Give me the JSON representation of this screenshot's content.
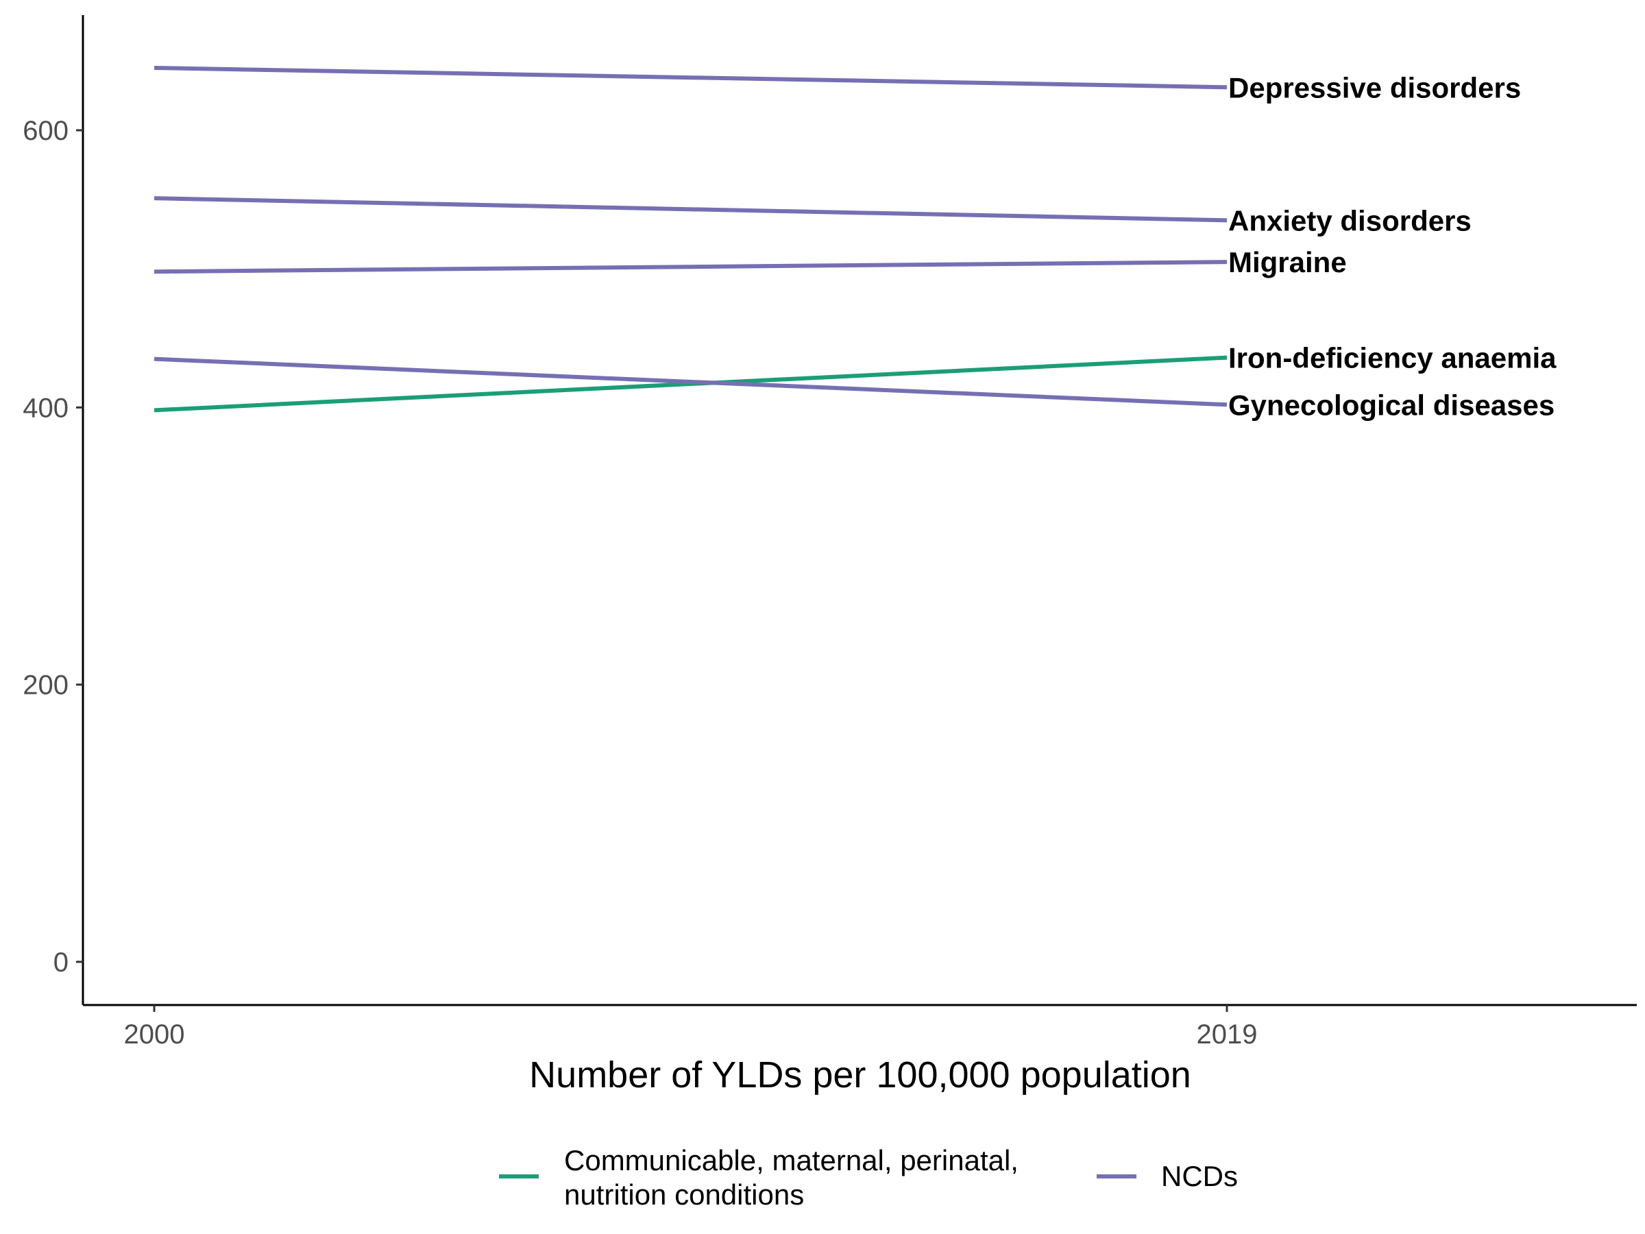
{
  "chart_data": {
    "type": "line",
    "title": "",
    "xlabel": "Number of YLDs per 100,000 population",
    "ylabel": "",
    "x": [
      "2000",
      "2019"
    ],
    "ylim": [
      -30,
      680
    ],
    "yticks": [
      "0",
      "200",
      "400",
      "600"
    ],
    "grid": false,
    "legend_position": "bottom",
    "legend": [
      {
        "label_lines": [
          "Communicable, maternal, perinatal,",
          "nutrition conditions"
        ],
        "color": "#1b9e77"
      },
      {
        "label_lines": [
          "NCDs"
        ],
        "color": "#7570b3"
      }
    ],
    "series": [
      {
        "name": "Depressive disorders",
        "group": "NCDs",
        "color": "#7570b3",
        "values": [
          645,
          631
        ]
      },
      {
        "name": "Anxiety disorders",
        "group": "NCDs",
        "color": "#7570b3",
        "values": [
          551,
          535
        ]
      },
      {
        "name": "Migraine",
        "group": "NCDs",
        "color": "#7570b3",
        "values": [
          498,
          505
        ]
      },
      {
        "name": "Iron-deficiency anaemia",
        "group": "Communicable, maternal, perinatal, nutrition conditions",
        "color": "#1b9e77",
        "values": [
          398,
          436
        ]
      },
      {
        "name": "Gynecological diseases",
        "group": "NCDs",
        "color": "#7570b3",
        "values": [
          435,
          402
        ]
      }
    ]
  }
}
